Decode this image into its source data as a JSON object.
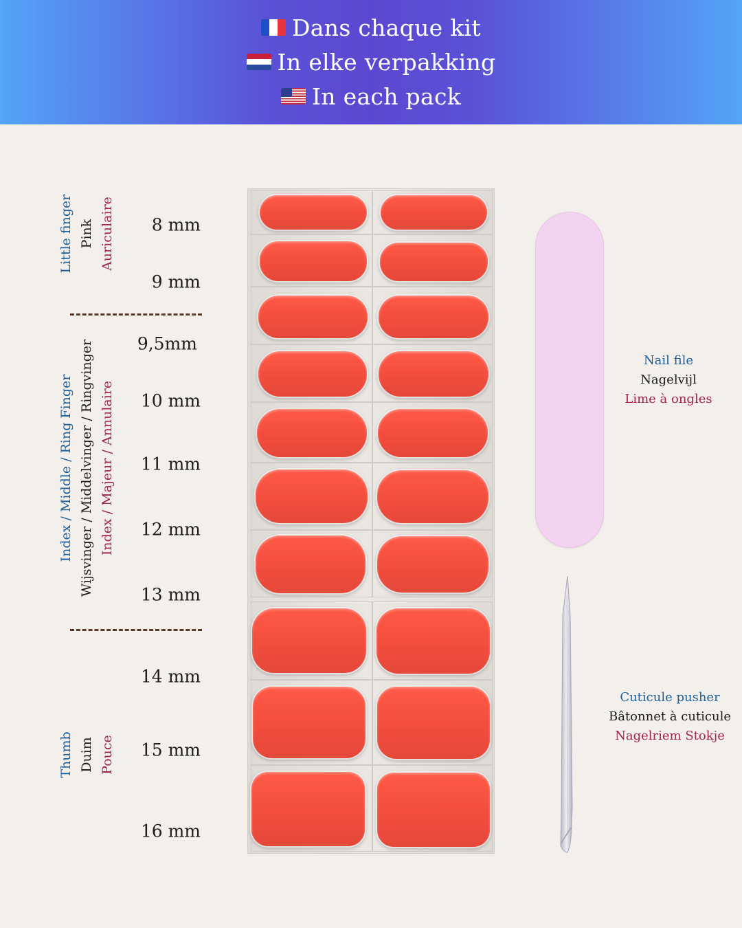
{
  "header": {
    "lines": [
      {
        "flag": "flag-fr-icon",
        "text": "Dans chaque kit"
      },
      {
        "flag": "flag-nl-icon",
        "text": "In elke verpakking"
      },
      {
        "flag": "flag-us-icon",
        "text": "In each pack"
      }
    ]
  },
  "groups": {
    "little": {
      "en": "Little finger",
      "nl": "Pink",
      "fr": "Auriculaire"
    },
    "middle": {
      "en": "Index / Middle / Ring Finger",
      "nl": "Wijsvinger / Middelvinger / Ringvinger",
      "fr": "Index / Majeur / Annulaire"
    },
    "thumb": {
      "en": "Thumb",
      "nl": "Duim",
      "fr": "Pouce"
    }
  },
  "sizes": [
    "8 mm",
    "9 mm",
    "9,5mm",
    "10 mm",
    "11 mm",
    "12 mm",
    "13 mm",
    "14 mm",
    "15 mm",
    "16 mm"
  ],
  "tools": {
    "nail_file": {
      "en": "Nail file",
      "nl": "Nagelvijl",
      "fr": "Lime à ongles"
    },
    "cuticle_pusher": {
      "en": "Cuticule pusher",
      "fr": "Bâtonnet à cuticule",
      "nl": "Nagelriem Stokje"
    }
  },
  "colors": {
    "banner_gradient": [
      "#54a4f8",
      "#5b48d0"
    ],
    "background": "#f3efea",
    "nail_color": "#f24d3d",
    "file_color": "#f3d4f0",
    "label_en": "#1d5f9a",
    "label_nl": "#1c1c1c",
    "label_fr": "#a3244a"
  }
}
